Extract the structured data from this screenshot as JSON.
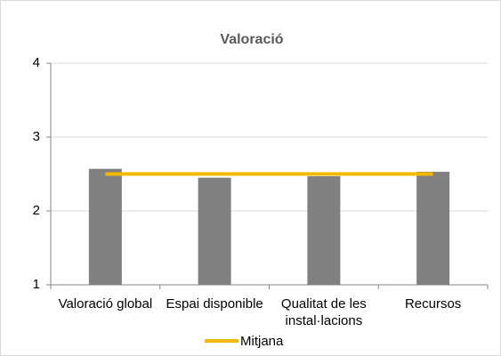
{
  "chart_data": {
    "type": "bar",
    "title": "Valoració",
    "categories": [
      "Valoració global",
      "Espai disponible",
      "Qualitat de les instal·lacions",
      "Recursos"
    ],
    "series": [
      {
        "color": "#808080",
        "values": [
          2.57,
          2.45,
          2.47,
          2.53
        ]
      },
      {
        "name": "Mitjana",
        "type": "line",
        "color": "#f5b800",
        "values": [
          2.5,
          2.5,
          2.5,
          2.5
        ]
      }
    ],
    "ylim": [
      1,
      4
    ],
    "yticks": [
      1,
      2,
      3,
      4
    ],
    "grid": true,
    "legend": "bottom"
  }
}
